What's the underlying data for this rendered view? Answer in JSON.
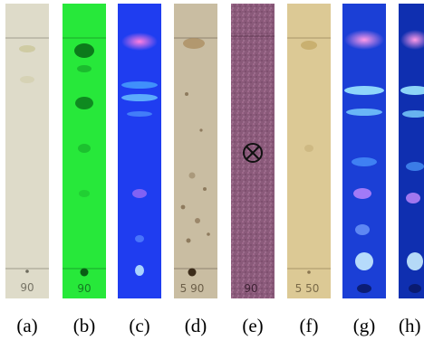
{
  "panels": [
    {
      "label": "(a)",
      "spot_label": "90"
    },
    {
      "label": "(b)",
      "spot_label": "90"
    },
    {
      "label": "(c)",
      "spot_label": ""
    },
    {
      "label": "(d)",
      "spot_label": "5 90"
    },
    {
      "label": "(e)",
      "spot_label": "90"
    },
    {
      "label": "(f)",
      "spot_label": "5 50"
    },
    {
      "label": "(g)",
      "spot_label": ""
    },
    {
      "label": "(h)",
      "spot_label": ""
    }
  ],
  "colors": {
    "a_background": "#dedbc9",
    "b_background": "#27e83a",
    "c_background": "#1f3df0",
    "d_background": "#cfc4ab",
    "e_background": "#8a5a7a",
    "f_background": "#dcc995",
    "g_background": "#1b3fd6",
    "h_background": "#0f2fb0"
  }
}
